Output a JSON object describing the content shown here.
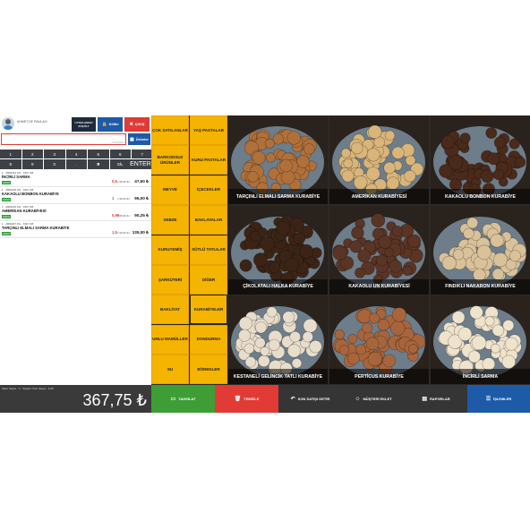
{
  "header": {
    "user_name": "AHMET DE PAVA.AO",
    "uyg_label": "UYGULAMAYI KÜÇÜLT",
    "kilit_label": "Kilitle",
    "cikis_label": "ÇIKIŞ"
  },
  "search": {
    "placeholder": "ürün/barkod"
  },
  "urunler_label": "Ürünler",
  "keypad": {
    "row1": [
      "1",
      "2",
      "3",
      "4",
      "5",
      "6",
      "7"
    ],
    "row2": [
      "8",
      "9",
      "0",
      ".",
      "✖",
      "SİL"
    ],
    "enter": "ENTER"
  },
  "items": [
    {
      "meta": "1 · 2900214 KG · KDV %8",
      "name": "İNCİRLİ SARMA",
      "badge": "GRAM",
      "qty": "0,5",
      "unit": "x 95,00 ₺=",
      "total": "47,50 ₺"
    },
    {
      "meta": "1 · 2900215 KG · KDV %8",
      "name": "KAKAOLU BONBON KURABİYE",
      "badge": "GRAM",
      "qty": "1",
      "unit": "x 95,00 ₺=",
      "total": "95,00 ₺"
    },
    {
      "meta": "1 · 2900210 KG · KDV %8",
      "name": "AMERİKAN KURABİYESİ",
      "badge": "GRAM",
      "qty": "0,95",
      "unit": "x 95,00 ₺=",
      "total": "90,25 ₺"
    },
    {
      "meta": "1 · 2900207 KG · KDV %8",
      "name": "TARÇINLI ELMALI SARMA KURABİYE",
      "badge": "GRAM",
      "qty": "1,5",
      "unit": "x 90,00 ₺=",
      "total": "135,00 ₺"
    }
  ],
  "totals": {
    "info": "Satırı Sayısı : 4 · Toplam Ürün Sayısı : 3,95",
    "amount": "367,75 ₺"
  },
  "categories": [
    [
      "ÇOK SATILANLAR",
      "YAŞ PASTALAR"
    ],
    [
      "BARKODSUZ ÜRÜNLER",
      "KURU PASTALAR"
    ],
    [
      "MEYVE",
      "İÇECEKLER"
    ],
    [
      "SEBZE",
      "BAKLAVALAR"
    ],
    [
      "KURUYEMİŞ",
      "SÜTLÜ TATLILAR"
    ],
    [
      "ŞARKÜTERİ",
      "DİĞER"
    ],
    [
      "BAKLİYAT",
      "KURABİYELER"
    ],
    [
      "UNLU MAMÜLLER",
      "DONDURMA"
    ],
    [
      "SU",
      "BÖREKLER"
    ]
  ],
  "products": [
    {
      "label": "TARÇINLI ELMALI SARMA KURABİYE",
      "color": "#b0703a"
    },
    {
      "label": "AMERİKAN KURABİYESİ",
      "color": "#d9b57a"
    },
    {
      "label": "KAKAOLU BONBON KURABİYE",
      "color": "#4a2a1a"
    },
    {
      "label": "ÇİKOLATALI HALKA KURABİYE",
      "color": "#3b2415"
    },
    {
      "label": "KAKAOLU UN KURABİYESİ",
      "color": "#5a3424"
    },
    {
      "label": "FINDIKLI NAKARON KURABİYE",
      "color": "#d9c19a"
    },
    {
      "label": "KESTANELİ GELİNCİK TATLI KURABİYE",
      "color": "#e8dccb"
    },
    {
      "label": "PERTİCUS KURABİYE",
      "color": "#a8653c"
    },
    {
      "label": "İNCİRLİ SARMA",
      "color": "#efe3cc"
    }
  ],
  "bottom_buttons": {
    "tahsilat": "TAHSİLAT",
    "temizle": "TEMİZLE",
    "son_satis": "SON SATIŞI GETİR",
    "musteri": "MÜŞTERİ EKLET",
    "raporlar": "RAPORLAR",
    "islemler": "İŞLEMLER"
  },
  "colors": {
    "category": "#f5b400",
    "tahsilat": "#3f9d35",
    "temizle": "#e23a35",
    "islemler": "#1d5aa8"
  }
}
